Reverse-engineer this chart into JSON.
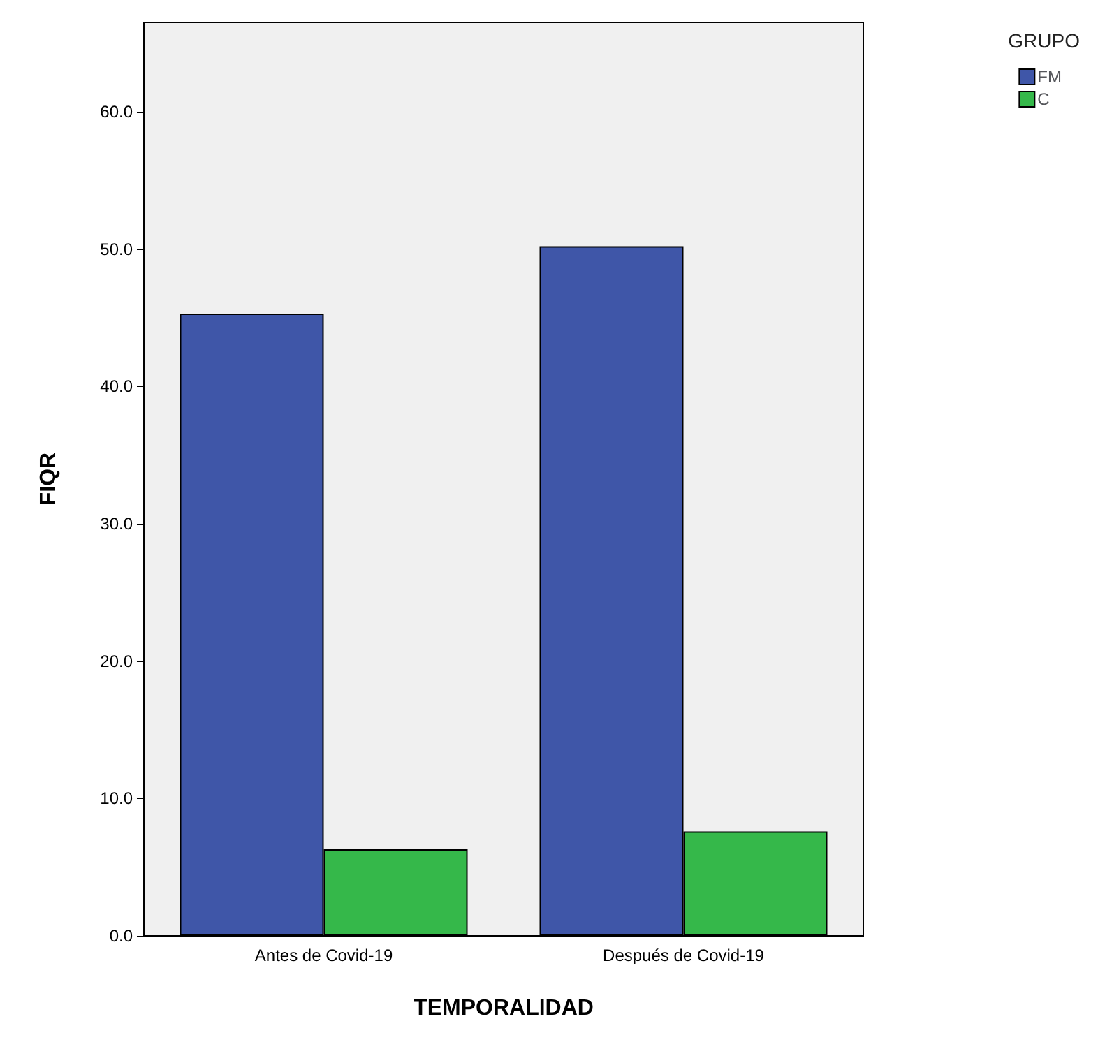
{
  "chart_data": {
    "type": "bar",
    "xlabel": "TEMPORALIDAD",
    "ylabel": "FIQR",
    "legend_title": "GRUPO",
    "categories": [
      "Antes de Covid-19",
      "Después de Covid-19"
    ],
    "series": [
      {
        "name": "FM",
        "color": "#3f56a8",
        "values": [
          45.3,
          50.2
        ]
      },
      {
        "name": "C",
        "color": "#35b84a",
        "values": [
          6.3,
          7.6
        ]
      }
    ],
    "ylim": [
      0,
      66.5
    ],
    "yticks": [
      {
        "value": 0,
        "label": "0.0"
      },
      {
        "value": 10,
        "label": "10.0"
      },
      {
        "value": 20,
        "label": "20.0"
      },
      {
        "value": 30,
        "label": "30.0"
      },
      {
        "value": 40,
        "label": "40.0"
      },
      {
        "value": 50,
        "label": "50.0"
      },
      {
        "value": 60,
        "label": "60.0"
      }
    ],
    "grid": false,
    "legend": "top right"
  }
}
